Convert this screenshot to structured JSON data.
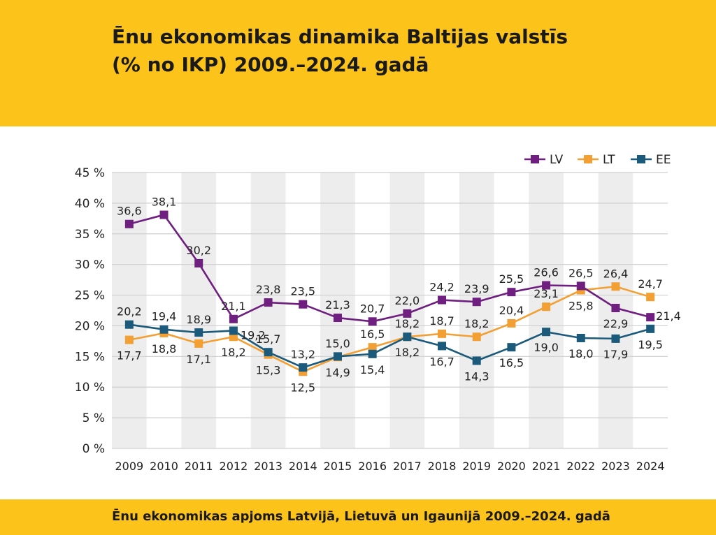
{
  "header": {
    "title_line1": "Ēnu ekonomikas dinamika Baltijas valstīs",
    "title_line2": "(% no IKP) 2009.–2024. gadā"
  },
  "footer": {
    "caption": "Ēnu ekonomikas apjoms  Latvijā, Lietuvā un Igaunijā 2009.–2024. gadā"
  },
  "chart_data": {
    "type": "line",
    "title": "Ēnu ekonomikas dinamika Baltijas valstīs (% no IKP) 2009.–2024. gadā",
    "xlabel": "",
    "ylabel": "",
    "categories": [
      "2009",
      "2010",
      "2011",
      "2012",
      "2013",
      "2014",
      "2015",
      "2016",
      "2017",
      "2018",
      "2019",
      "2020",
      "2021",
      "2022",
      "2023",
      "2024"
    ],
    "ylim": [
      0,
      45
    ],
    "y_ticks": [
      0,
      5,
      10,
      15,
      20,
      25,
      30,
      35,
      40,
      45
    ],
    "y_tick_labels": [
      "0 %",
      "5 %",
      "10 %",
      "15 %",
      "20 %",
      "25 %",
      "30 %",
      "35 %",
      "40 %",
      "45 %"
    ],
    "grid": true,
    "alternating_column_shading": true,
    "legend_position": "top-right",
    "series": [
      {
        "name": "LV",
        "color": "#6f1f7f",
        "values": [
          36.6,
          38.1,
          30.2,
          21.1,
          23.8,
          23.5,
          21.3,
          20.7,
          22.0,
          24.2,
          23.9,
          25.5,
          26.6,
          26.5,
          22.9,
          21.4
        ],
        "labels": [
          "36,6",
          "38,1",
          "30,2",
          "21,1",
          "23,8",
          "23,5",
          "21,3",
          "20,7",
          "22,0",
          "24,2",
          "23,9",
          "25,5",
          "26,6",
          "26,5",
          "22,9",
          "21,4"
        ]
      },
      {
        "name": "LT",
        "color": "#f29f33",
        "values": [
          17.7,
          18.8,
          17.1,
          18.2,
          15.3,
          12.5,
          14.9,
          16.5,
          18.2,
          18.7,
          18.2,
          20.4,
          23.1,
          25.8,
          26.4,
          24.7
        ],
        "labels": [
          "17,7",
          "18,8",
          "17,1",
          "18,2",
          "15,3",
          "12,5",
          "14,9",
          "16,5",
          "18,2",
          "18,7",
          "18,2",
          "20,4",
          "23,1",
          "25,8",
          "26,4",
          "24,7"
        ]
      },
      {
        "name": "EE",
        "color": "#1b5a7a",
        "values": [
          20.2,
          19.4,
          18.9,
          19.2,
          15.7,
          13.2,
          15.0,
          15.4,
          18.2,
          16.7,
          14.3,
          16.5,
          19.0,
          18.0,
          17.9,
          19.5
        ],
        "labels": [
          "20,2",
          "19,4",
          "18,9",
          "19,2",
          "15,7",
          "13,2",
          "15,0",
          "15,4",
          "18,2",
          "16,7",
          "14,3",
          "16,5",
          "19,0",
          "18,0",
          "17,9",
          "19,5"
        ]
      }
    ]
  }
}
